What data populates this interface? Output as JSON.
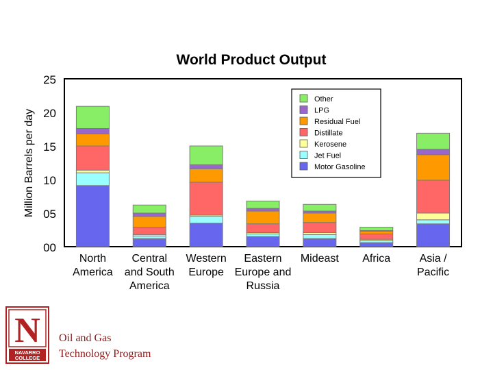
{
  "chart_data": {
    "type": "bar",
    "stacked": true,
    "title": "World Product Output",
    "ylabel": "Million Barrels per day",
    "xlabel": "",
    "ylim": [
      0,
      25
    ],
    "yticks": [
      0,
      5,
      10,
      15,
      20,
      25
    ],
    "ytick_labels": [
      "00",
      "05",
      "10",
      "15",
      "20",
      "25"
    ],
    "grid": false,
    "legend_position": "top-right",
    "categories": [
      [
        "North",
        "America"
      ],
      [
        "Central",
        "and South",
        "America"
      ],
      [
        "Western",
        "Europe"
      ],
      [
        "Eastern",
        "Europe and",
        "Russia"
      ],
      [
        "Mideast"
      ],
      [
        "Africa"
      ],
      [
        "Asia /",
        "Pacific"
      ]
    ],
    "series": [
      {
        "name": "Motor Gasoline",
        "color": "#6666ee",
        "values": [
          9.1,
          1.2,
          3.5,
          1.5,
          1.2,
          0.6,
          3.4
        ]
      },
      {
        "name": "Jet Fuel",
        "color": "#99ffff",
        "values": [
          1.9,
          0.4,
          1.0,
          0.4,
          0.6,
          0.3,
          0.6
        ]
      },
      {
        "name": "Kerosene",
        "color": "#ffff99",
        "values": [
          0.4,
          0.2,
          0.2,
          0.2,
          0.3,
          0.2,
          1.0
        ]
      },
      {
        "name": "Distillate",
        "color": "#ff6666",
        "values": [
          3.6,
          1.1,
          4.9,
          1.3,
          1.5,
          0.8,
          4.9
        ]
      },
      {
        "name": "Residual Fuel",
        "color": "#ff9900",
        "values": [
          1.8,
          1.6,
          2.0,
          1.9,
          1.4,
          0.4,
          3.8
        ]
      },
      {
        "name": "LPG",
        "color": "#9966cc",
        "values": [
          0.8,
          0.5,
          0.6,
          0.4,
          0.3,
          0.1,
          0.8
        ]
      },
      {
        "name": "Other",
        "color": "#88ee66",
        "values": [
          3.3,
          1.2,
          2.8,
          1.1,
          1.0,
          0.5,
          2.4
        ]
      }
    ]
  },
  "footer": {
    "line1": "Oil and Gas",
    "line2": "Technology Program"
  },
  "logo": {
    "letter": "N",
    "line1": "NAVARRO",
    "line2": "COLLEGE",
    "color": "#b22222"
  }
}
